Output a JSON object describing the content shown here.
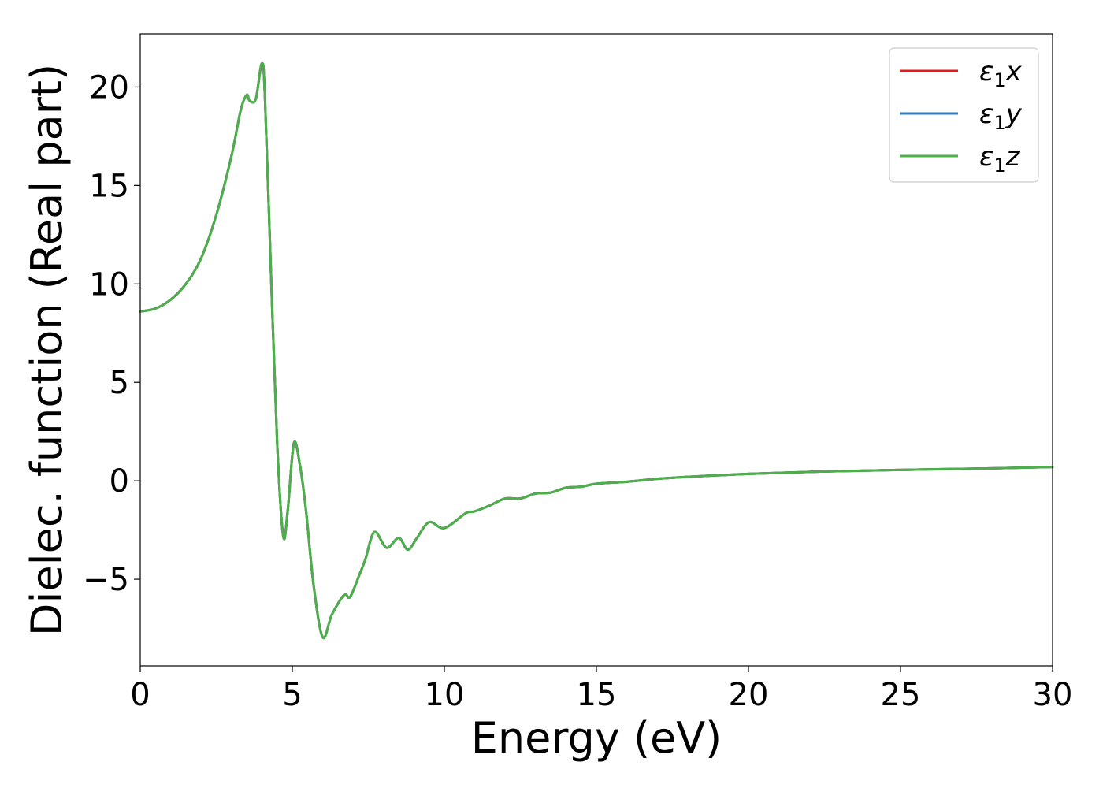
{
  "chart_data": {
    "type": "line",
    "title": "",
    "xlabel": "Energy (eV)",
    "ylabel": "Dielec. function (Real part)",
    "xlim": [
      0,
      30
    ],
    "ylim": [
      -9.4,
      22.7
    ],
    "xticks": [
      0,
      5,
      10,
      15,
      20,
      25,
      30
    ],
    "xtick_labels": [
      "0",
      "5",
      "10",
      "15",
      "20",
      "25",
      "30"
    ],
    "yticks": [
      -5,
      0,
      5,
      10,
      15,
      20
    ],
    "ytick_labels": [
      "−5",
      "0",
      "5",
      "10",
      "15",
      "20"
    ],
    "grid": false,
    "legend_position": "top-right",
    "x": [
      0,
      0.5,
      1.0,
      1.5,
      2.0,
      2.5,
      3.0,
      3.3,
      3.5,
      3.6,
      3.8,
      4.0,
      4.1,
      4.3,
      4.5,
      4.7,
      4.85,
      5.05,
      5.25,
      5.45,
      5.7,
      6.0,
      6.3,
      6.7,
      6.9,
      7.2,
      7.4,
      7.7,
      8.1,
      8.5,
      8.8,
      9.1,
      9.5,
      10.0,
      10.7,
      11.0,
      11.5,
      12.0,
      12.5,
      13.0,
      13.5,
      14.0,
      14.5,
      15.0,
      16.0,
      17.0,
      18.0,
      19.0,
      20.0,
      22.0,
      24.0,
      26.0,
      28.0,
      30.0
    ],
    "series": [
      {
        "name": "ε1x",
        "label_main": "ε",
        "label_sub": "1",
        "label_axis": "x",
        "color": "#e41a1c",
        "values": [
          8.6,
          8.75,
          9.2,
          10.0,
          11.3,
          13.5,
          16.5,
          18.8,
          19.6,
          19.3,
          19.4,
          21.2,
          19.5,
          10.5,
          2.0,
          -2.8,
          -1.5,
          1.9,
          0.8,
          -1.5,
          -5.3,
          -7.95,
          -6.8,
          -5.8,
          -5.9,
          -4.8,
          -4.0,
          -2.6,
          -3.4,
          -2.9,
          -3.5,
          -2.9,
          -2.1,
          -2.4,
          -1.65,
          -1.55,
          -1.25,
          -0.9,
          -0.9,
          -0.65,
          -0.6,
          -0.35,
          -0.3,
          -0.15,
          -0.05,
          0.1,
          0.2,
          0.28,
          0.35,
          0.45,
          0.52,
          0.58,
          0.63,
          0.7
        ]
      },
      {
        "name": "ε1y",
        "label_main": "ε",
        "label_sub": "1",
        "label_axis": "y",
        "color": "#377eb8",
        "values": [
          8.6,
          8.75,
          9.2,
          10.0,
          11.3,
          13.5,
          16.5,
          18.8,
          19.6,
          19.3,
          19.4,
          21.2,
          19.5,
          10.5,
          2.0,
          -2.8,
          -1.5,
          1.9,
          0.8,
          -1.5,
          -5.3,
          -7.95,
          -6.8,
          -5.8,
          -5.9,
          -4.8,
          -4.0,
          -2.6,
          -3.4,
          -2.9,
          -3.5,
          -2.9,
          -2.1,
          -2.4,
          -1.65,
          -1.55,
          -1.25,
          -0.9,
          -0.9,
          -0.65,
          -0.6,
          -0.35,
          -0.3,
          -0.15,
          -0.05,
          0.1,
          0.2,
          0.28,
          0.35,
          0.45,
          0.52,
          0.58,
          0.63,
          0.7
        ]
      },
      {
        "name": "ε1z",
        "label_main": "ε",
        "label_sub": "1",
        "label_axis": "z",
        "color": "#4daf4a",
        "values": [
          8.6,
          8.75,
          9.2,
          10.0,
          11.3,
          13.5,
          16.5,
          18.8,
          19.6,
          19.3,
          19.4,
          21.2,
          19.5,
          10.5,
          2.0,
          -2.8,
          -1.5,
          1.9,
          0.8,
          -1.5,
          -5.3,
          -7.95,
          -6.8,
          -5.8,
          -5.9,
          -4.8,
          -4.0,
          -2.6,
          -3.4,
          -2.9,
          -3.5,
          -2.9,
          -2.1,
          -2.4,
          -1.65,
          -1.55,
          -1.25,
          -0.9,
          -0.9,
          -0.65,
          -0.6,
          -0.35,
          -0.3,
          -0.15,
          -0.05,
          0.1,
          0.2,
          0.28,
          0.35,
          0.45,
          0.52,
          0.58,
          0.63,
          0.7
        ]
      }
    ]
  }
}
